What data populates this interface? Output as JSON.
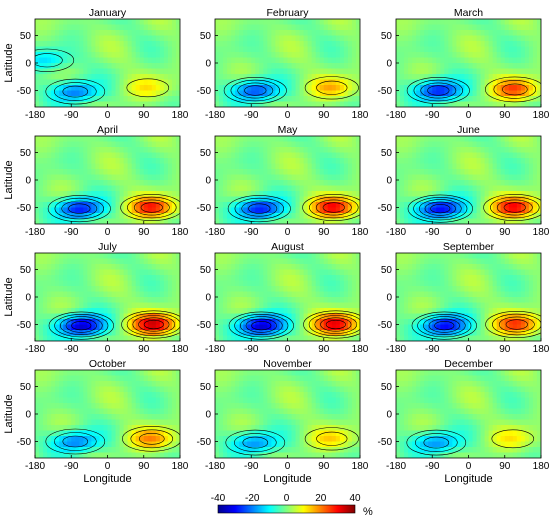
{
  "colorbar": {
    "ticks": [
      -40,
      -20,
      0,
      20,
      40
    ],
    "unit": "%",
    "colors": [
      "#00008f",
      "#0000ff",
      "#007fff",
      "#00ffff",
      "#7fff7f",
      "#ffff00",
      "#ff7f00",
      "#ff0000",
      "#7f0000"
    ]
  },
  "axes_labels": {
    "x": "Longitude",
    "y": "Latitude"
  },
  "chart_data": [
    {
      "type": "heatmap",
      "title": "January",
      "xlim": [
        -180,
        180
      ],
      "ylim": [
        -80,
        80
      ],
      "xticks": [
        -180,
        -90,
        0,
        90,
        180
      ],
      "yticks": [
        50,
        0,
        -50
      ],
      "clim": [
        -40,
        40
      ],
      "features": [
        {
          "label": "negative",
          "lon": -80,
          "lat": -52,
          "value": -22
        },
        {
          "label": "positive",
          "lon": 100,
          "lat": -45,
          "value": 10
        },
        {
          "label": "negative",
          "lon": -150,
          "lat": 5,
          "value": -12
        }
      ]
    },
    {
      "type": "heatmap",
      "title": "February",
      "xlim": [
        -180,
        180
      ],
      "ylim": [
        -80,
        80
      ],
      "xticks": [
        -180,
        -90,
        0,
        90,
        180
      ],
      "yticks": [
        50,
        0,
        -50
      ],
      "clim": [
        -40,
        40
      ],
      "features": [
        {
          "label": "negative",
          "lon": -80,
          "lat": -50,
          "value": -26
        },
        {
          "label": "positive",
          "lon": 110,
          "lat": -45,
          "value": 15
        }
      ]
    },
    {
      "type": "heatmap",
      "title": "March",
      "xlim": [
        -180,
        180
      ],
      "ylim": [
        -80,
        80
      ],
      "xticks": [
        -180,
        -90,
        0,
        90,
        180
      ],
      "yticks": [
        50,
        0,
        -50
      ],
      "clim": [
        -40,
        40
      ],
      "features": [
        {
          "label": "negative",
          "lon": -75,
          "lat": -50,
          "value": -30
        },
        {
          "label": "positive",
          "lon": 115,
          "lat": -48,
          "value": 24
        }
      ]
    },
    {
      "type": "heatmap",
      "title": "April",
      "xlim": [
        -180,
        180
      ],
      "ylim": [
        -80,
        80
      ],
      "xticks": [
        -180,
        -90,
        0,
        90,
        180
      ],
      "yticks": [
        50,
        0,
        -50
      ],
      "clim": [
        -40,
        40
      ],
      "features": [
        {
          "label": "negative",
          "lon": -70,
          "lat": -52,
          "value": -30
        },
        {
          "label": "positive",
          "lon": 110,
          "lat": -50,
          "value": 28
        }
      ]
    },
    {
      "type": "heatmap",
      "title": "May",
      "xlim": [
        -180,
        180
      ],
      "ylim": [
        -80,
        80
      ],
      "xticks": [
        -180,
        -90,
        0,
        90,
        180
      ],
      "yticks": [
        50,
        0,
        -50
      ],
      "clim": [
        -40,
        40
      ],
      "features": [
        {
          "label": "negative",
          "lon": -70,
          "lat": -52,
          "value": -30
        },
        {
          "label": "positive",
          "lon": 115,
          "lat": -50,
          "value": 30
        }
      ]
    },
    {
      "type": "heatmap",
      "title": "June",
      "xlim": [
        -180,
        180
      ],
      "ylim": [
        -80,
        80
      ],
      "xticks": [
        -180,
        -90,
        0,
        90,
        180
      ],
      "yticks": [
        50,
        0,
        -50
      ],
      "clim": [
        -40,
        40
      ],
      "features": [
        {
          "label": "negative",
          "lon": -70,
          "lat": -52,
          "value": -32
        },
        {
          "label": "positive",
          "lon": 115,
          "lat": -50,
          "value": 30
        }
      ]
    },
    {
      "type": "heatmap",
      "title": "July",
      "xlim": [
        -180,
        180
      ],
      "ylim": [
        -80,
        80
      ],
      "xticks": [
        -180,
        -90,
        0,
        90,
        180
      ],
      "yticks": [
        50,
        0,
        -50
      ],
      "clim": [
        -40,
        40
      ],
      "features": [
        {
          "label": "negative",
          "lon": -65,
          "lat": -52,
          "value": -36
        },
        {
          "label": "positive",
          "lon": 115,
          "lat": -50,
          "value": 34
        }
      ]
    },
    {
      "type": "heatmap",
      "title": "August",
      "xlim": [
        -180,
        180
      ],
      "ylim": [
        -80,
        80
      ],
      "xticks": [
        -180,
        -90,
        0,
        90,
        180
      ],
      "yticks": [
        50,
        0,
        -50
      ],
      "clim": [
        -40,
        40
      ],
      "features": [
        {
          "label": "negative",
          "lon": -65,
          "lat": -52,
          "value": -36
        },
        {
          "label": "positive",
          "lon": 120,
          "lat": -50,
          "value": 32
        }
      ]
    },
    {
      "type": "heatmap",
      "title": "September",
      "xlim": [
        -180,
        180
      ],
      "ylim": [
        -80,
        80
      ],
      "xticks": [
        -180,
        -90,
        0,
        90,
        180
      ],
      "yticks": [
        50,
        0,
        -50
      ],
      "clim": [
        -40,
        40
      ],
      "features": [
        {
          "label": "negative",
          "lon": -60,
          "lat": -52,
          "value": -32
        },
        {
          "label": "positive",
          "lon": 120,
          "lat": -50,
          "value": 26
        }
      ]
    },
    {
      "type": "heatmap",
      "title": "October",
      "xlim": [
        -180,
        180
      ],
      "ylim": [
        -80,
        80
      ],
      "xticks": [
        -180,
        -90,
        0,
        90,
        180
      ],
      "yticks": [
        50,
        0,
        -50
      ],
      "clim": [
        -40,
        40
      ],
      "features": [
        {
          "label": "negative",
          "lon": -80,
          "lat": -50,
          "value": -22
        },
        {
          "label": "positive",
          "lon": 110,
          "lat": -45,
          "value": 18
        }
      ]
    },
    {
      "type": "heatmap",
      "title": "November",
      "xlim": [
        -180,
        180
      ],
      "ylim": [
        -80,
        80
      ],
      "xticks": [
        -180,
        -90,
        0,
        90,
        180
      ],
      "yticks": [
        50,
        0,
        -50
      ],
      "clim": [
        -40,
        40
      ],
      "features": [
        {
          "label": "negative",
          "lon": -80,
          "lat": -52,
          "value": -20
        },
        {
          "label": "positive",
          "lon": 110,
          "lat": -45,
          "value": 12
        }
      ]
    },
    {
      "type": "heatmap",
      "title": "December",
      "xlim": [
        -180,
        180
      ],
      "ylim": [
        -80,
        80
      ],
      "xticks": [
        -180,
        -90,
        0,
        90,
        180
      ],
      "yticks": [
        50,
        0,
        -50
      ],
      "clim": [
        -40,
        40
      ],
      "features": [
        {
          "label": "negative",
          "lon": -80,
          "lat": -52,
          "value": -20
        },
        {
          "label": "positive",
          "lon": 110,
          "lat": -45,
          "value": 10
        }
      ]
    }
  ]
}
